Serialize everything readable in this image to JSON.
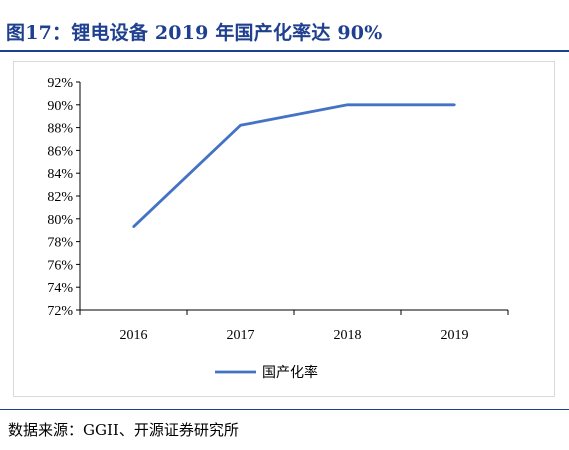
{
  "header": {
    "title": "图17：锂电设备 2019 年国产化率达 90%"
  },
  "footer": {
    "source": "数据来源：GGII、开源证券研究所"
  },
  "colors": {
    "title": "#1F3F8F",
    "series": "#4472C4"
  },
  "chart_data": {
    "type": "line",
    "categories": [
      "2016",
      "2017",
      "2018",
      "2019"
    ],
    "series": [
      {
        "name": "国产化率",
        "values": [
          0.793,
          0.882,
          0.9,
          0.9
        ]
      }
    ],
    "ylim": [
      0.72,
      0.92
    ],
    "yticks": [
      "92%",
      "90%",
      "88%",
      "86%",
      "84%",
      "82%",
      "80%",
      "78%",
      "76%",
      "74%",
      "72%"
    ],
    "grid": false,
    "legend": "bottom-center"
  }
}
